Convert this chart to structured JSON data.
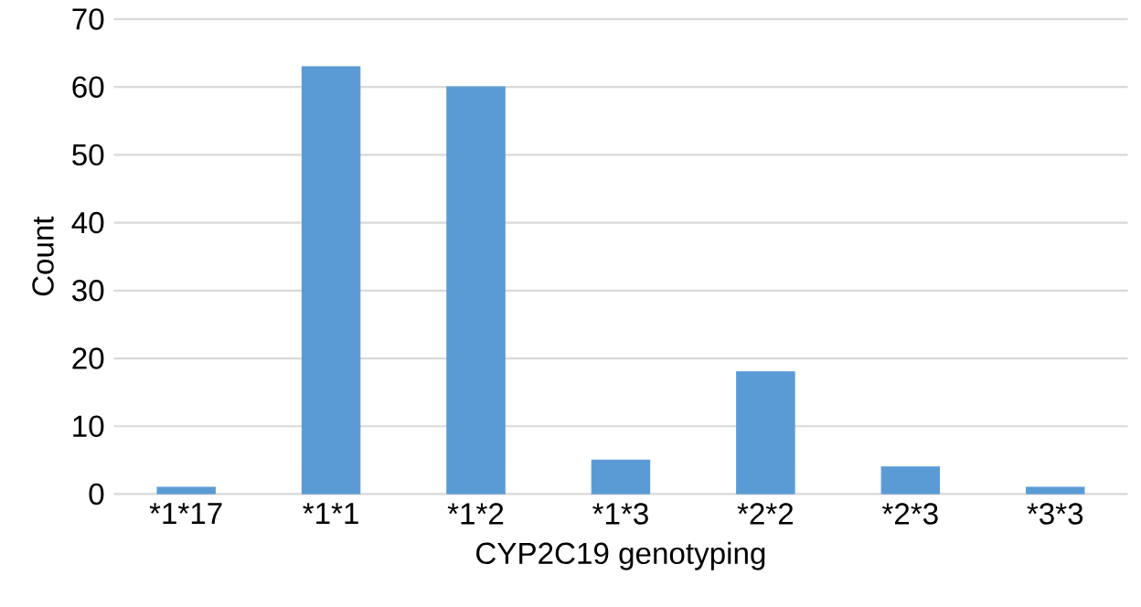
{
  "chart_data": {
    "type": "bar",
    "xlabel": "CYP2C19 genotyping",
    "ylabel": "Count",
    "categories": [
      "*1*17",
      "*1*1",
      "*1*2",
      "*1*3",
      "*2*2",
      "*2*3",
      "*3*3"
    ],
    "values": [
      1,
      63,
      60,
      5,
      18,
      4,
      1
    ],
    "color": "#5b9bd5",
    "ylim": [
      0,
      70
    ],
    "yticks": [
      0,
      10,
      20,
      30,
      40,
      50,
      60,
      70
    ],
    "grid": "y"
  }
}
